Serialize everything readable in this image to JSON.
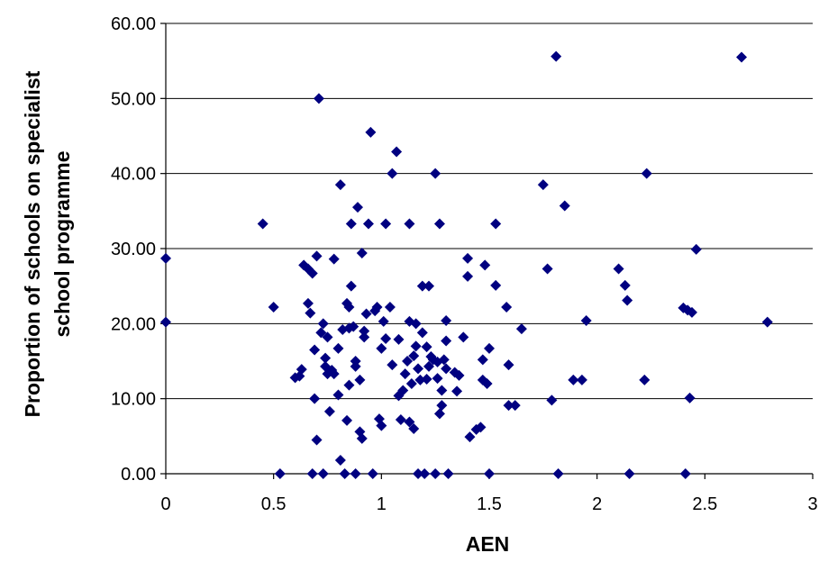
{
  "chart_data": {
    "type": "scatter",
    "title": "",
    "xlabel": "AEN",
    "ylabel_lines": [
      "Proportion of schools on specialist",
      "school programme"
    ],
    "xlim": [
      0,
      3
    ],
    "ylim": [
      0,
      60
    ],
    "x_ticks": [
      "0",
      "0.5",
      "1",
      "1.5",
      "2",
      "2.5",
      "3"
    ],
    "y_ticks": [
      "0.00",
      "10.00",
      "20.00",
      "30.00",
      "40.00",
      "50.00",
      "60.00"
    ],
    "grid": "horizontal",
    "marker_color": "#000080",
    "points": [
      [
        0.0,
        28.7
      ],
      [
        0.0,
        20.2
      ],
      [
        0.45,
        33.3
      ],
      [
        0.5,
        22.2
      ],
      [
        0.53,
        0.0
      ],
      [
        0.6,
        12.8
      ],
      [
        0.62,
        13.0
      ],
      [
        0.63,
        13.9
      ],
      [
        0.64,
        27.8
      ],
      [
        0.66,
        22.7
      ],
      [
        0.66,
        27.3
      ],
      [
        0.67,
        21.4
      ],
      [
        0.68,
        26.7
      ],
      [
        0.68,
        0.0
      ],
      [
        0.69,
        10.0
      ],
      [
        0.69,
        16.5
      ],
      [
        0.7,
        29.0
      ],
      [
        0.7,
        4.5
      ],
      [
        0.71,
        50.0
      ],
      [
        0.72,
        18.8
      ],
      [
        0.73,
        0.0
      ],
      [
        0.73,
        20.0
      ],
      [
        0.74,
        15.4
      ],
      [
        0.74,
        14.3
      ],
      [
        0.75,
        18.2
      ],
      [
        0.75,
        13.3
      ],
      [
        0.76,
        8.3
      ],
      [
        0.77,
        13.8
      ],
      [
        0.78,
        28.6
      ],
      [
        0.78,
        13.3
      ],
      [
        0.8,
        16.7
      ],
      [
        0.8,
        10.5
      ],
      [
        0.81,
        38.5
      ],
      [
        0.81,
        1.8
      ],
      [
        0.82,
        19.2
      ],
      [
        0.83,
        0.0
      ],
      [
        0.84,
        22.7
      ],
      [
        0.84,
        7.1
      ],
      [
        0.85,
        22.2
      ],
      [
        0.85,
        19.4
      ],
      [
        0.85,
        11.8
      ],
      [
        0.86,
        33.3
      ],
      [
        0.86,
        25.0
      ],
      [
        0.87,
        19.6
      ],
      [
        0.88,
        15.0
      ],
      [
        0.88,
        14.3
      ],
      [
        0.88,
        0.0
      ],
      [
        0.89,
        35.5
      ],
      [
        0.9,
        12.5
      ],
      [
        0.9,
        5.6
      ],
      [
        0.91,
        4.7
      ],
      [
        0.91,
        29.4
      ],
      [
        0.92,
        19.0
      ],
      [
        0.92,
        18.2
      ],
      [
        0.93,
        21.3
      ],
      [
        0.94,
        33.3
      ],
      [
        0.95,
        45.5
      ],
      [
        0.96,
        0.0
      ],
      [
        0.97,
        21.7
      ],
      [
        0.98,
        22.2
      ],
      [
        0.99,
        7.3
      ],
      [
        1.0,
        6.4
      ],
      [
        1.0,
        16.7
      ],
      [
        1.01,
        20.3
      ],
      [
        1.02,
        18.0
      ],
      [
        1.02,
        33.3
      ],
      [
        1.04,
        22.2
      ],
      [
        1.05,
        14.5
      ],
      [
        1.05,
        40.0
      ],
      [
        1.07,
        42.9
      ],
      [
        1.08,
        17.9
      ],
      [
        1.08,
        10.4
      ],
      [
        1.09,
        7.2
      ],
      [
        1.1,
        11.1
      ],
      [
        1.11,
        13.3
      ],
      [
        1.12,
        15.0
      ],
      [
        1.13,
        6.9
      ],
      [
        1.13,
        33.3
      ],
      [
        1.13,
        20.3
      ],
      [
        1.14,
        12.0
      ],
      [
        1.15,
        6.0
      ],
      [
        1.15,
        15.7
      ],
      [
        1.16,
        20.0
      ],
      [
        1.16,
        17.0
      ],
      [
        1.17,
        0.0
      ],
      [
        1.17,
        14.0
      ],
      [
        1.18,
        12.5
      ],
      [
        1.19,
        18.8
      ],
      [
        1.19,
        25.0
      ],
      [
        1.2,
        0.0
      ],
      [
        1.21,
        12.6
      ],
      [
        1.21,
        16.9
      ],
      [
        1.22,
        14.3
      ],
      [
        1.22,
        25.0
      ],
      [
        1.23,
        15.6
      ],
      [
        1.24,
        15.2
      ],
      [
        1.25,
        40.0
      ],
      [
        1.25,
        0.0
      ],
      [
        1.26,
        14.9
      ],
      [
        1.26,
        12.7
      ],
      [
        1.27,
        8.0
      ],
      [
        1.27,
        33.3
      ],
      [
        1.28,
        9.1
      ],
      [
        1.28,
        11.1
      ],
      [
        1.29,
        15.2
      ],
      [
        1.3,
        14.0
      ],
      [
        1.3,
        17.7
      ],
      [
        1.3,
        20.4
      ],
      [
        1.31,
        0.0
      ],
      [
        1.34,
        13.5
      ],
      [
        1.35,
        11.0
      ],
      [
        1.36,
        13.1
      ],
      [
        1.38,
        18.2
      ],
      [
        1.4,
        28.7
      ],
      [
        1.4,
        26.3
      ],
      [
        1.41,
        4.9
      ],
      [
        1.44,
        5.9
      ],
      [
        1.46,
        6.2
      ],
      [
        1.47,
        15.2
      ],
      [
        1.47,
        12.5
      ],
      [
        1.48,
        27.8
      ],
      [
        1.49,
        12.0
      ],
      [
        1.5,
        16.7
      ],
      [
        1.5,
        0.0
      ],
      [
        1.53,
        33.3
      ],
      [
        1.53,
        25.1
      ],
      [
        1.58,
        22.2
      ],
      [
        1.59,
        14.5
      ],
      [
        1.59,
        9.1
      ],
      [
        1.62,
        9.1
      ],
      [
        1.65,
        19.3
      ],
      [
        1.75,
        38.5
      ],
      [
        1.77,
        27.3
      ],
      [
        1.79,
        9.8
      ],
      [
        1.81,
        55.6
      ],
      [
        1.82,
        0.0
      ],
      [
        1.85,
        35.7
      ],
      [
        1.89,
        12.5
      ],
      [
        1.93,
        12.5
      ],
      [
        1.95,
        20.4
      ],
      [
        2.1,
        27.3
      ],
      [
        2.13,
        25.1
      ],
      [
        2.14,
        23.1
      ],
      [
        2.15,
        0.0
      ],
      [
        2.22,
        12.5
      ],
      [
        2.23,
        40.0
      ],
      [
        2.4,
        22.1
      ],
      [
        2.41,
        0.0
      ],
      [
        2.42,
        21.8
      ],
      [
        2.43,
        10.1
      ],
      [
        2.44,
        21.5
      ],
      [
        2.46,
        29.9
      ],
      [
        2.67,
        55.5
      ],
      [
        2.79,
        20.2
      ]
    ]
  }
}
